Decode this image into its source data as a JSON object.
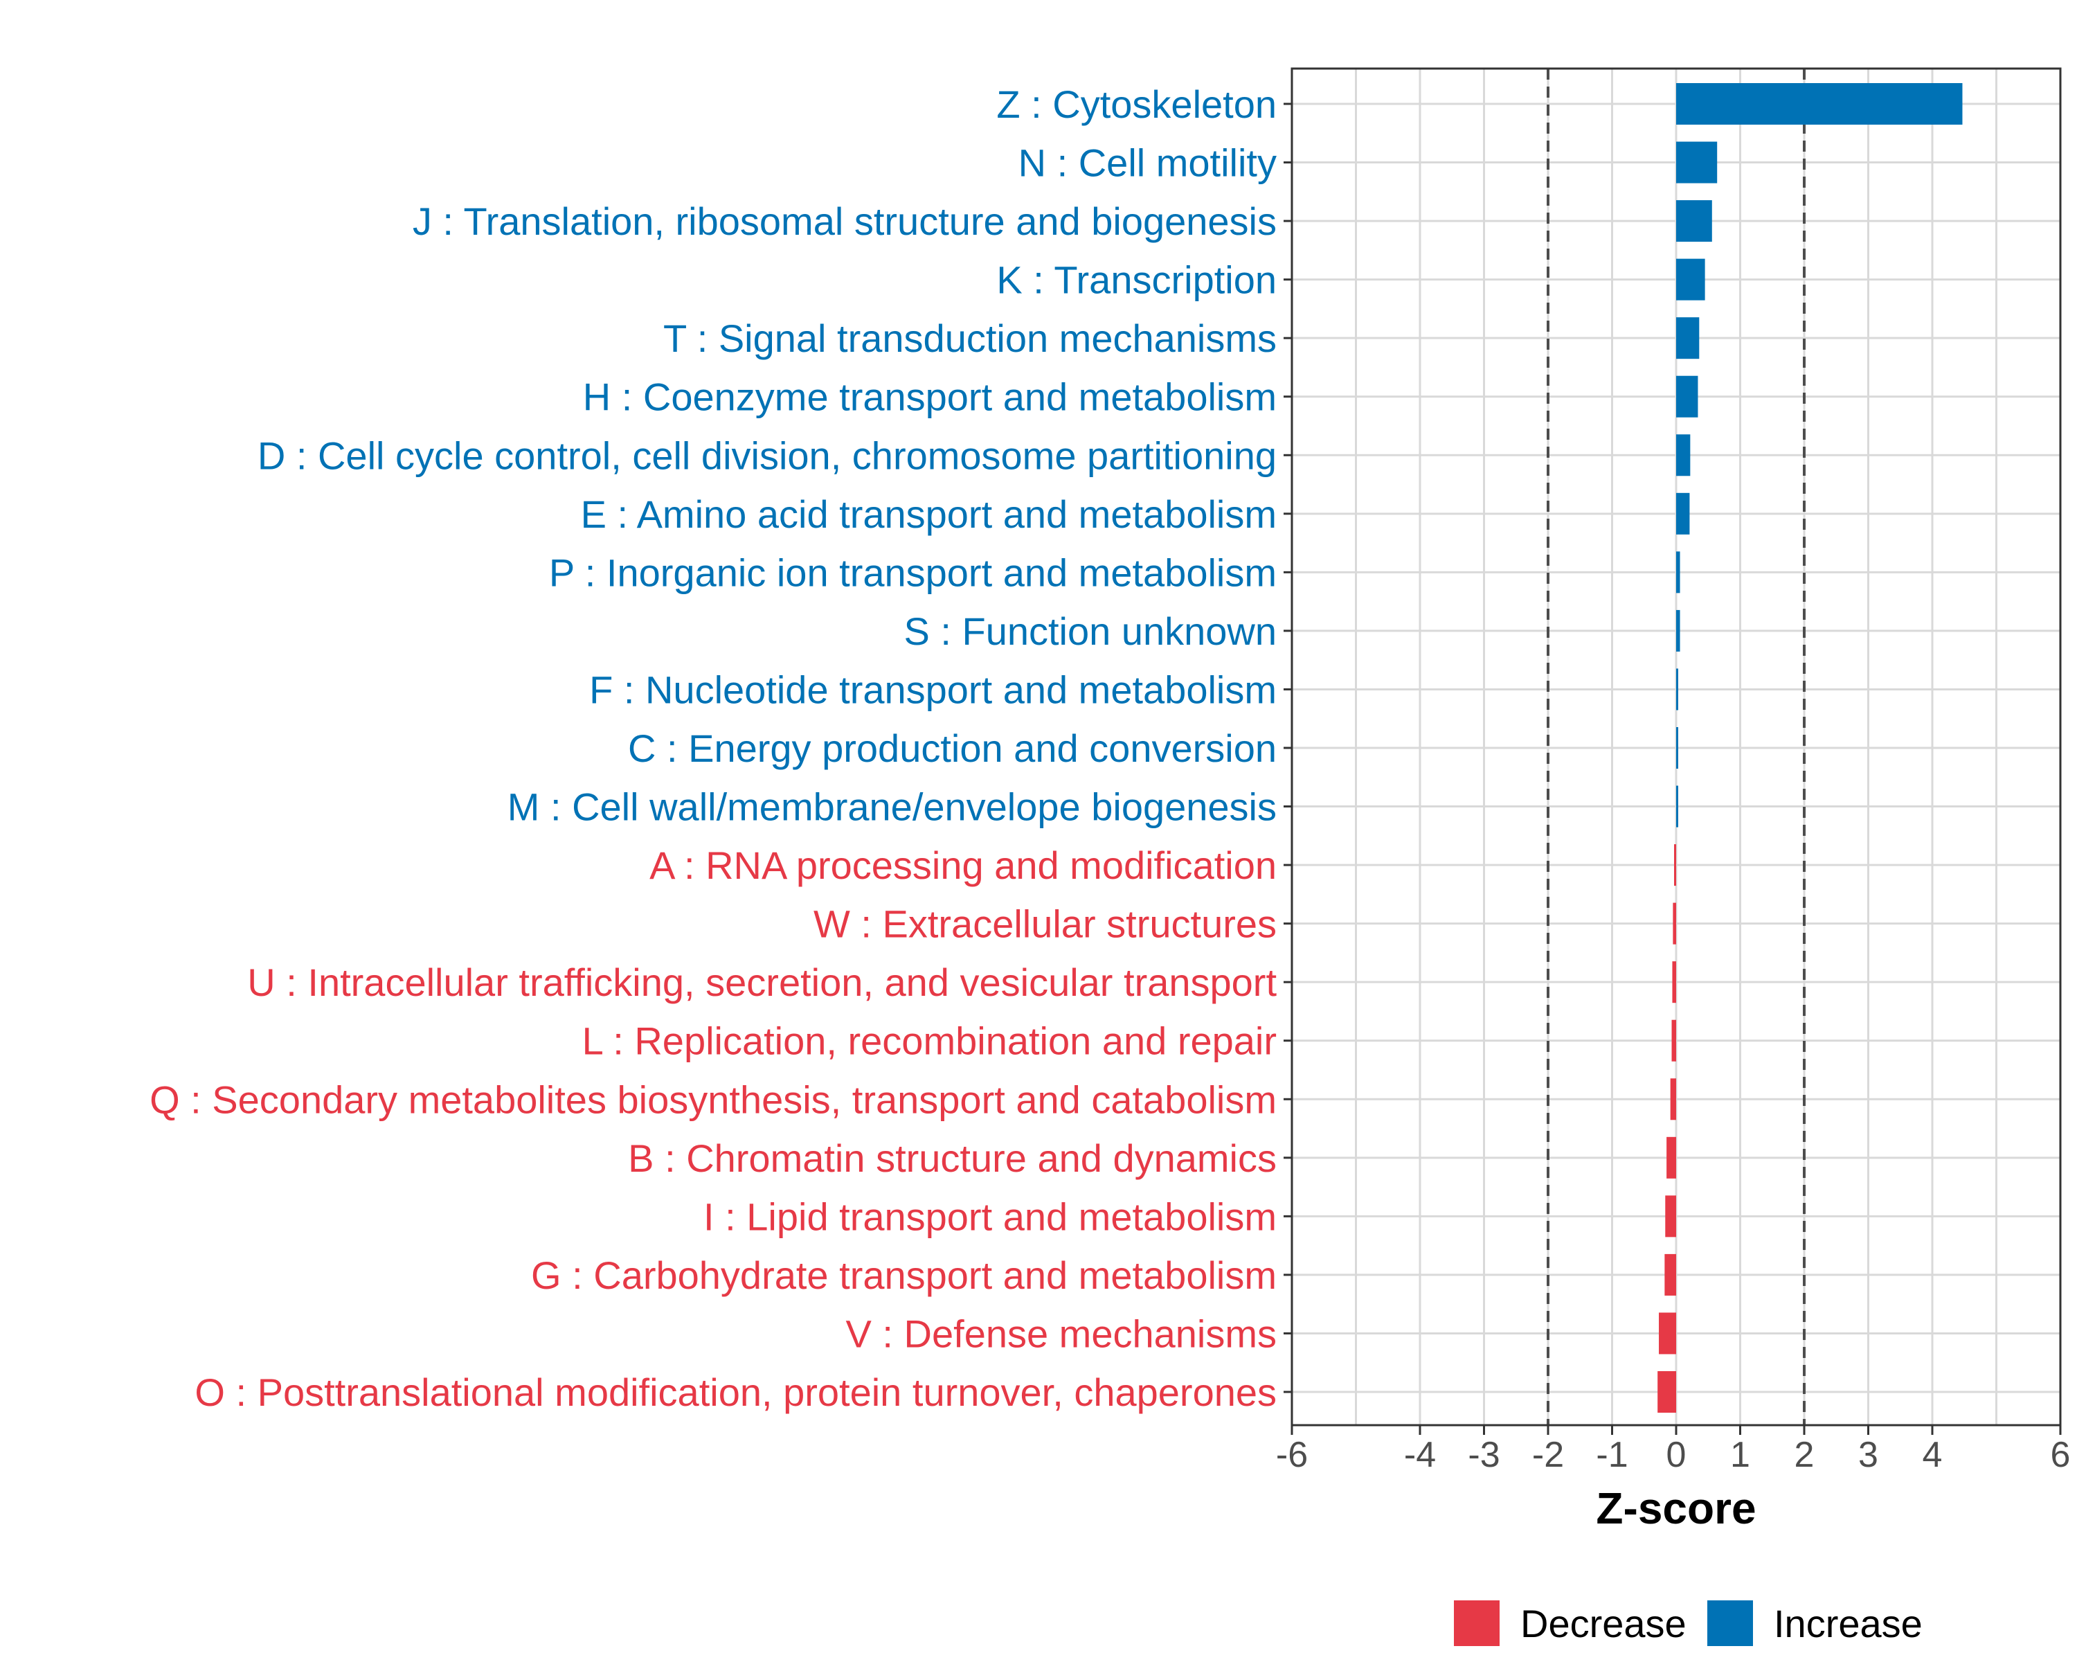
{
  "chart_data": {
    "type": "bar",
    "orientation": "horizontal",
    "xlabel": "Z-score",
    "xlim": [
      -6,
      6
    ],
    "x_ticks": [
      -6,
      -4,
      -3,
      -2,
      -1,
      0,
      1,
      2,
      3,
      4,
      6
    ],
    "reference_lines": [
      -2,
      2
    ],
    "grid": true,
    "categories": [
      "Z : Cytoskeleton",
      "N : Cell motility",
      "J : Translation, ribosomal structure and biogenesis",
      "K : Transcription",
      "T : Signal transduction mechanisms",
      "H : Coenzyme transport and metabolism",
      "D : Cell cycle control, cell division, chromosome partitioning",
      "E : Amino acid transport and metabolism",
      "P : Inorganic ion transport and metabolism",
      "S : Function unknown",
      "F : Nucleotide transport and metabolism",
      "C : Energy production and conversion",
      "M : Cell wall/membrane/envelope biogenesis",
      "A : RNA processing and modification",
      "W : Extracellular structures",
      "U : Intracellular trafficking, secretion, and vesicular transport",
      "L : Replication, recombination and repair",
      "Q : Secondary metabolites biosynthesis, transport and catabolism",
      "B : Chromatin structure and dynamics",
      "I : Lipid transport and metabolism",
      "G : Carbohydrate transport and metabolism",
      "V : Defense mechanisms",
      "O : Posttranslational modification, protein turnover, chaperones"
    ],
    "values": [
      4.47,
      0.64,
      0.56,
      0.45,
      0.36,
      0.34,
      0.22,
      0.21,
      0.06,
      0.06,
      0.03,
      0.03,
      0.02,
      -0.01,
      -0.05,
      -0.06,
      -0.07,
      -0.09,
      -0.15,
      -0.17,
      -0.18,
      -0.27,
      -0.29
    ],
    "legend": {
      "position": "bottom",
      "items": [
        {
          "name": "Decrease",
          "color": "#e63946"
        },
        {
          "name": "Increase",
          "color": "#0072b5"
        }
      ]
    },
    "colors": {
      "increase": "#0072b5",
      "decrease": "#e63946",
      "grid": "#d9d9d9",
      "reference_line": "#4d4d4d"
    }
  }
}
